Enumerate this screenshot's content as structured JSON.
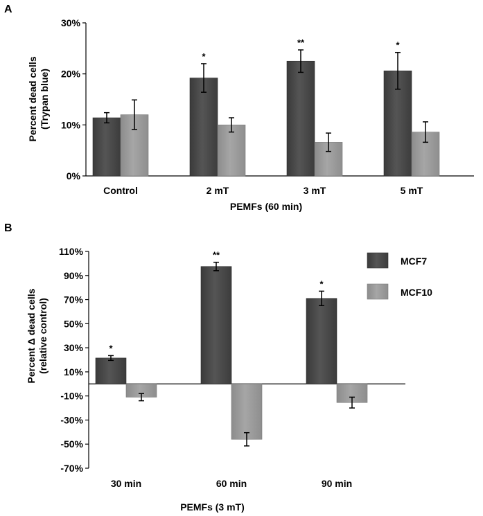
{
  "chart_data": [
    {
      "panel": "A",
      "type": "bar",
      "xlabel": "PEMFs (60 min)",
      "ylabel_lines": [
        "Percent dead cells",
        "(Trypan blue)"
      ],
      "ylim": [
        0,
        30
      ],
      "yticks": [
        0,
        10,
        20,
        30
      ],
      "ytick_labels": [
        "0%",
        "10%",
        "20%",
        "30%"
      ],
      "categories": [
        "Control",
        "2 mT",
        "3 mT",
        "5 mT"
      ],
      "series": [
        {
          "name": "MCF7",
          "color": "#4a4a4a",
          "values": [
            11.4,
            19.2,
            22.5,
            20.6
          ],
          "errors": [
            1.0,
            2.8,
            2.2,
            3.6
          ],
          "significance": [
            "",
            "*",
            "**",
            "*"
          ]
        },
        {
          "name": "MCF10",
          "color": "#989898",
          "values": [
            12.0,
            10.0,
            6.6,
            8.6
          ],
          "errors": [
            2.9,
            1.4,
            1.8,
            2.0
          ],
          "significance": [
            "",
            "",
            "",
            ""
          ]
        }
      ]
    },
    {
      "panel": "B",
      "type": "bar",
      "xlabel": "PEMFs (3 mT)",
      "ylabel_lines": [
        "Percent Δ dead cells",
        "(relative control)"
      ],
      "ylim": [
        -70,
        110
      ],
      "yticks": [
        -70,
        -50,
        -30,
        -10,
        10,
        30,
        50,
        70,
        90,
        110
      ],
      "ytick_labels": [
        "-70%",
        "-50%",
        "-30%",
        "-10%",
        "10%",
        "30%",
        "50%",
        "70%",
        "90%",
        "110%"
      ],
      "categories": [
        "30 min",
        "60 min",
        "90 min"
      ],
      "series": [
        {
          "name": "MCF7",
          "color": "#4a4a4a",
          "values": [
            21.5,
            97.5,
            71.0
          ],
          "errors": [
            2.0,
            3.5,
            6.0
          ],
          "significance": [
            "*",
            "**",
            "*"
          ]
        },
        {
          "name": "MCF10",
          "color": "#989898",
          "values": [
            -11.0,
            -46.0,
            -15.5
          ],
          "errors": [
            3.0,
            5.5,
            4.5
          ],
          "significance": [
            "",
            "",
            ""
          ]
        }
      ],
      "legend": {
        "placement": "right",
        "entries": [
          "MCF7",
          "MCF10"
        ]
      }
    }
  ]
}
